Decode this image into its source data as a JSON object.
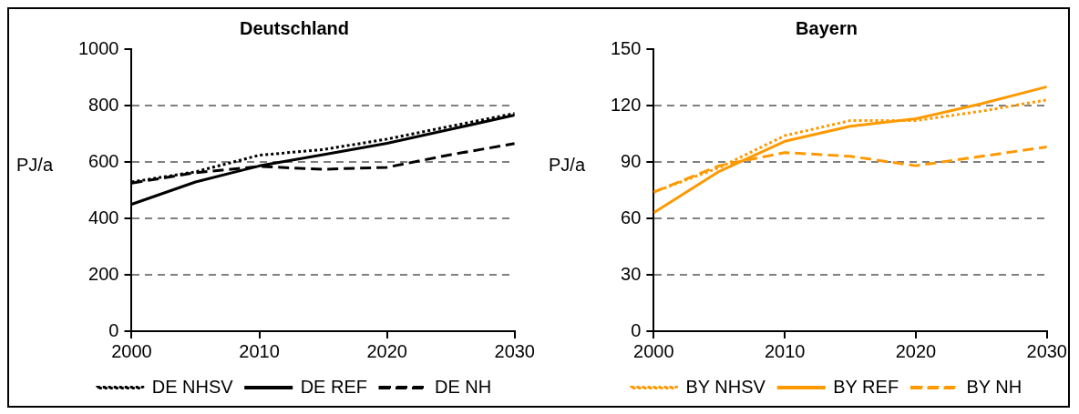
{
  "chart_data": [
    {
      "type": "line",
      "title": "Deutschland",
      "ylabel": "PJ/a",
      "x": [
        2000,
        2005,
        2010,
        2015,
        2020,
        2025,
        2030
      ],
      "xlim": [
        2000,
        2030
      ],
      "xticks": [
        2000,
        2010,
        2020,
        2030
      ],
      "ylim": [
        0,
        1000
      ],
      "yticks": [
        0,
        200,
        400,
        600,
        800,
        1000
      ],
      "grid": "y",
      "legend": "bottom",
      "marker": "none",
      "series": [
        {
          "name": "DE NHSV",
          "color": "#000000",
          "line_style": "dotted",
          "values": [
            529,
            565,
            624,
            644,
            681,
            727,
            772
          ]
        },
        {
          "name": "DE REF",
          "color": "#000000",
          "line_style": "solid",
          "values": [
            450,
            529,
            586,
            626,
            666,
            716,
            766
          ]
        },
        {
          "name": "DE NH",
          "color": "#000000",
          "line_style": "dashed",
          "values": [
            525,
            562,
            584,
            574,
            581,
            626,
            665
          ]
        }
      ]
    },
    {
      "type": "line",
      "title": "Bayern",
      "ylabel": "PJ/a",
      "x": [
        2000,
        2005,
        2010,
        2015,
        2020,
        2025,
        2030
      ],
      "xlim": [
        2000,
        2030
      ],
      "xticks": [
        2000,
        2010,
        2020,
        2030
      ],
      "ylim": [
        0,
        150
      ],
      "yticks": [
        0,
        30,
        60,
        90,
        120,
        150
      ],
      "grid": "y",
      "legend": "bottom",
      "marker": "none",
      "series": [
        {
          "name": "BY NHSV",
          "color": "#ff9900",
          "line_style": "dotted",
          "values": [
            74,
            87,
            104,
            112,
            112,
            117,
            123
          ]
        },
        {
          "name": "BY REF",
          "color": "#ff9900",
          "line_style": "solid",
          "values": [
            63,
            85,
            101,
            109,
            113,
            121,
            130
          ]
        },
        {
          "name": "BY NH",
          "color": "#ff9900",
          "line_style": "dashed",
          "values": [
            74,
            88,
            95,
            93,
            88,
            93,
            98
          ]
        }
      ]
    }
  ]
}
